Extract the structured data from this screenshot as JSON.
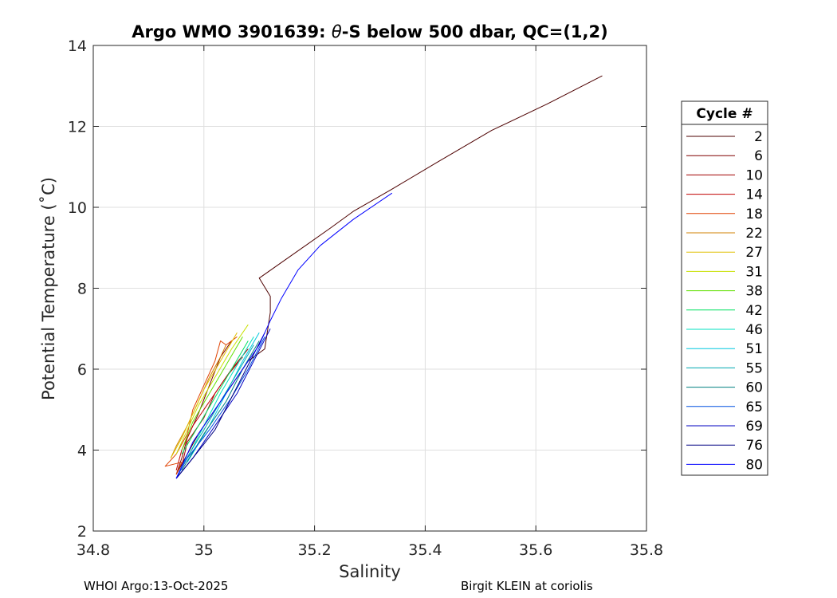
{
  "chart_data": {
    "type": "line",
    "title_prefix": "Argo WMO 3901639: ",
    "title_theta": "θ",
    "title_suffix": "-S below 500 dbar,  QC=(1,2)",
    "xlabel": "Salinity",
    "ylabel": "Potential Temperature (˚C)",
    "xlim": [
      34.8,
      35.8
    ],
    "ylim": [
      2,
      14
    ],
    "xticks": [
      34.8,
      35,
      35.2,
      35.4,
      35.6,
      35.8
    ],
    "xtick_labels": [
      "34.8",
      "35",
      "35.2",
      "35.4",
      "35.6",
      "35.8"
    ],
    "yticks": [
      2,
      4,
      6,
      8,
      10,
      12,
      14
    ],
    "ytick_labels": [
      "2",
      "4",
      "6",
      "8",
      "10",
      "12",
      "14"
    ],
    "grid": true,
    "legend_title": "Cycle #",
    "legend_position": "right-outside",
    "series": [
      {
        "name": "2",
        "color": "#4d0000",
        "x": [
          35.72,
          35.62,
          35.52,
          35.42,
          35.34,
          35.27,
          35.23,
          35.1,
          35.12,
          35.12,
          35.11,
          35.08,
          35.05,
          35.02,
          34.99,
          34.97,
          34.95
        ],
        "y": [
          13.25,
          12.55,
          11.9,
          11.1,
          10.45,
          9.9,
          9.5,
          8.25,
          7.8,
          7.4,
          6.5,
          6.2,
          5.6,
          5.0,
          4.4,
          3.9,
          3.4
        ]
      },
      {
        "name": "6",
        "color": "#800000",
        "x": [
          35.05,
          35.03,
          35.01,
          34.99,
          34.97,
          34.96,
          34.95
        ],
        "y": [
          6.7,
          6.3,
          5.6,
          4.9,
          4.3,
          3.8,
          3.4
        ]
      },
      {
        "name": "10",
        "color": "#a00000",
        "x": [
          35.08,
          35.05,
          35.02,
          35.0,
          34.97,
          34.96
        ],
        "y": [
          6.5,
          6.0,
          5.4,
          4.8,
          4.2,
          3.6
        ]
      },
      {
        "name": "14",
        "color": "#c00000",
        "x": [
          35.07,
          35.04,
          35.01,
          34.98,
          34.96,
          34.95
        ],
        "y": [
          6.3,
          5.8,
          5.2,
          4.6,
          4.0,
          3.5
        ]
      },
      {
        "name": "18",
        "color": "#e04000",
        "x": [
          35.06,
          35.04,
          35.03,
          35.02,
          35.0,
          34.98,
          34.97,
          34.95,
          34.93,
          34.96,
          34.95
        ],
        "y": [
          6.8,
          6.6,
          6.7,
          6.2,
          5.6,
          5.0,
          4.4,
          3.9,
          3.6,
          3.7,
          3.4
        ]
      },
      {
        "name": "22",
        "color": "#d08000",
        "x": [
          35.04,
          35.03,
          35.01,
          34.99,
          34.97,
          34.95,
          34.94
        ],
        "y": [
          6.6,
          6.3,
          5.8,
          5.2,
          4.6,
          4.1,
          3.8
        ]
      },
      {
        "name": "27",
        "color": "#e0c000",
        "x": [
          35.06,
          35.03,
          35.0,
          34.98,
          34.96,
          34.94
        ],
        "y": [
          6.9,
          6.2,
          5.5,
          4.9,
          4.3,
          3.8
        ]
      },
      {
        "name": "31",
        "color": "#c8e000",
        "x": [
          35.08,
          35.05,
          35.02,
          34.99,
          34.97,
          34.95
        ],
        "y": [
          7.1,
          6.5,
          5.8,
          5.1,
          4.5,
          3.9
        ]
      },
      {
        "name": "38",
        "color": "#60e000",
        "x": [
          35.07,
          35.04,
          35.01,
          34.98,
          34.96
        ],
        "y": [
          6.8,
          6.1,
          5.4,
          4.7,
          4.0
        ]
      },
      {
        "name": "42",
        "color": "#00e060",
        "x": [
          35.08,
          35.05,
          35.02,
          34.99,
          34.96
        ],
        "y": [
          6.7,
          6.0,
          5.3,
          4.6,
          3.9
        ]
      },
      {
        "name": "46",
        "color": "#00e0c0",
        "x": [
          35.09,
          35.06,
          35.03,
          35.0,
          34.97
        ],
        "y": [
          6.8,
          6.1,
          5.4,
          4.6,
          3.8
        ]
      },
      {
        "name": "51",
        "color": "#00c8e0",
        "x": [
          35.1,
          35.07,
          35.04,
          35.01,
          34.97
        ],
        "y": [
          6.9,
          6.2,
          5.4,
          4.6,
          3.7
        ]
      },
      {
        "name": "55",
        "color": "#00a8b0",
        "x": [
          35.09,
          35.06,
          35.03,
          35.0,
          34.96
        ],
        "y": [
          6.6,
          5.9,
          5.2,
          4.5,
          3.6
        ]
      },
      {
        "name": "60",
        "color": "#008080",
        "x": [
          35.1,
          35.07,
          35.04,
          35.0,
          34.96
        ],
        "y": [
          6.7,
          6.0,
          5.2,
          4.4,
          3.5
        ]
      },
      {
        "name": "65",
        "color": "#0050e0",
        "x": [
          35.11,
          35.08,
          35.05,
          35.01,
          34.97,
          34.95
        ],
        "y": [
          6.8,
          6.0,
          5.3,
          4.5,
          3.8,
          3.3
        ]
      },
      {
        "name": "69",
        "color": "#0000c0",
        "x": [
          35.12,
          35.09,
          35.06,
          35.02,
          34.98,
          34.95
        ],
        "y": [
          7.0,
          6.2,
          5.4,
          4.6,
          3.8,
          3.3
        ]
      },
      {
        "name": "76",
        "color": "#000080",
        "x": [
          35.11,
          35.08,
          35.05,
          35.02,
          34.98,
          34.95
        ],
        "y": [
          6.9,
          6.1,
          5.3,
          4.5,
          3.8,
          3.3
        ]
      },
      {
        "name": "80",
        "color": "#0000ff",
        "x": [
          35.34,
          35.27,
          35.21,
          35.17,
          35.14,
          35.12,
          35.1,
          35.07,
          35.04,
          35.01,
          34.98,
          34.96,
          34.95
        ],
        "y": [
          10.35,
          9.7,
          9.05,
          8.45,
          7.75,
          7.2,
          6.6,
          6.0,
          5.4,
          4.8,
          4.2,
          3.6,
          3.3
        ]
      }
    ]
  },
  "footer": {
    "left": "WHOI Argo:13-Oct-2025",
    "right": "Birgit KLEIN at coriolis"
  }
}
